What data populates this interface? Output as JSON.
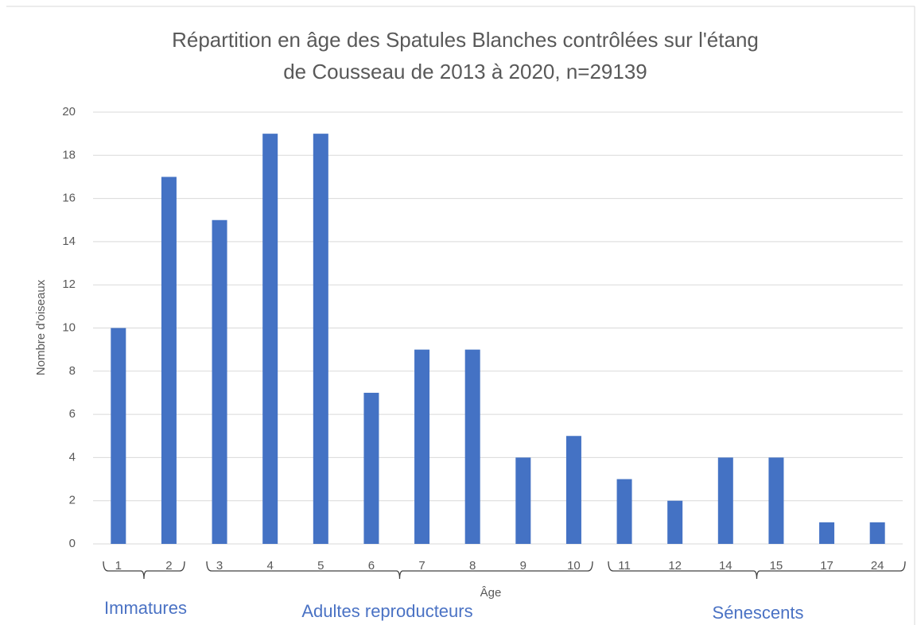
{
  "chart_data": {
    "type": "bar",
    "title": [
      "Répartition en âge des Spatules Blanches contrôlées sur l'étang",
      "de Cousseau de 2013 à 2020, n=29139"
    ],
    "x_label": "Âge",
    "y_label": "Nombre d'oiseaux",
    "categories": [
      "1",
      "2",
      "3",
      "4",
      "5",
      "6",
      "7",
      "8",
      "9",
      "10",
      "11",
      "12",
      "14",
      "15",
      "17",
      "24"
    ],
    "values": [
      10,
      17,
      15,
      19,
      19,
      7,
      9,
      9,
      4,
      5,
      3,
      2,
      4,
      4,
      1,
      1
    ],
    "color": "#4472c4",
    "ylim": [
      0,
      20
    ],
    "yticks": [
      0,
      2,
      4,
      6,
      8,
      10,
      12,
      14,
      16,
      18,
      20
    ],
    "grid": true,
    "annotations": [
      "Immatures",
      "Adultes reproducteurs",
      "Sénescents"
    ]
  }
}
